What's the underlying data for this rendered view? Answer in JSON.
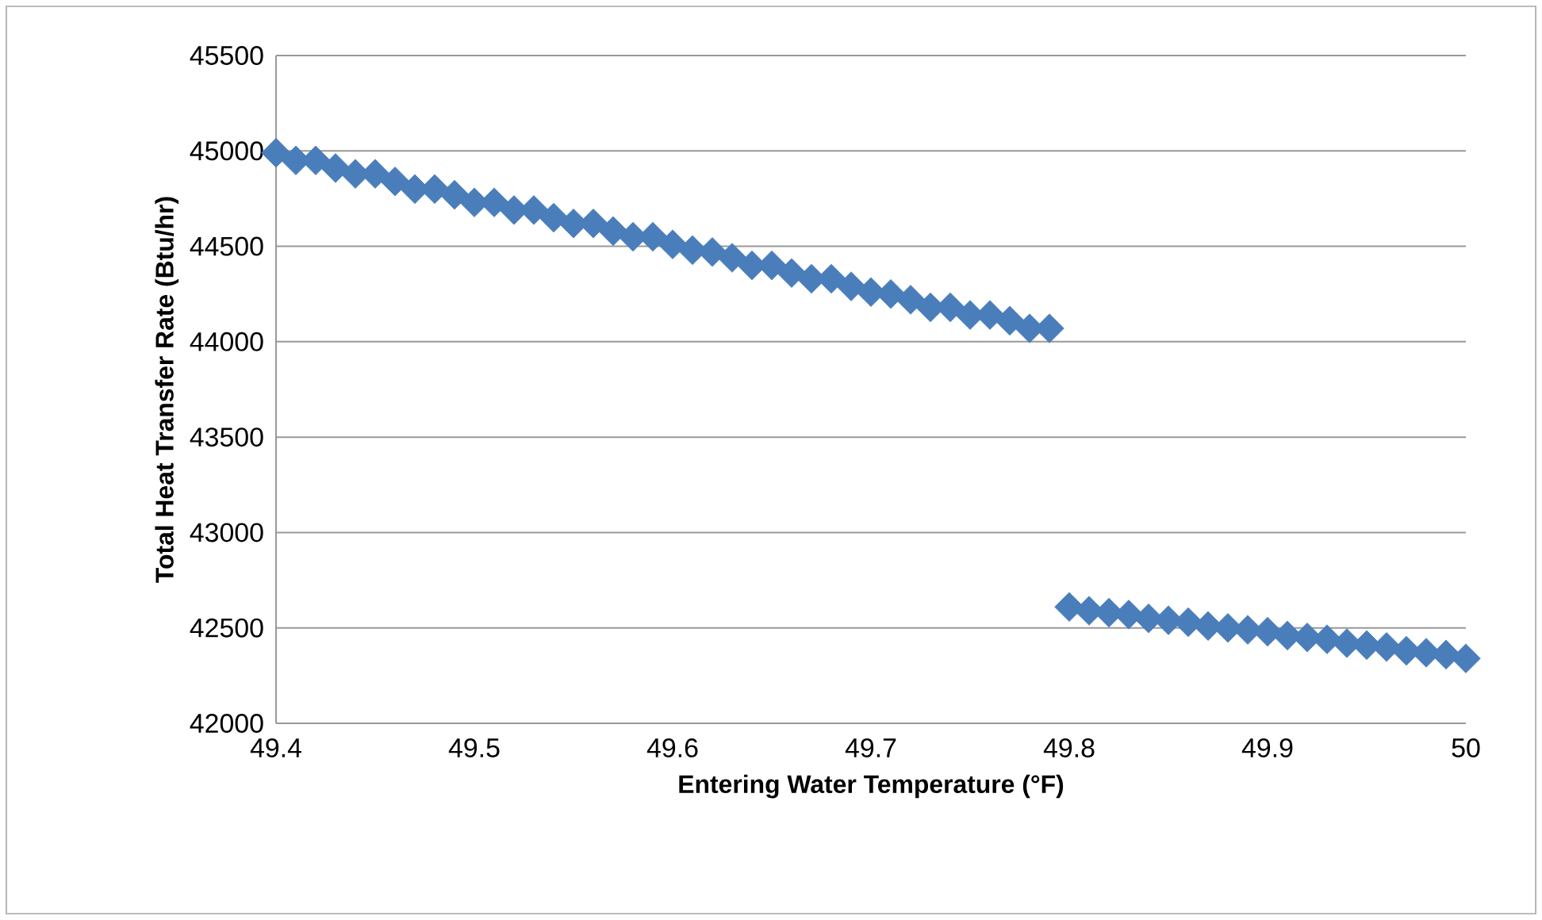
{
  "chart_data": {
    "type": "scatter",
    "xlabel": "Entering Water Temperature (°F)",
    "ylabel": "Total Heat Transfer Rate (Btu/hr)",
    "x": [
      49.4,
      49.41,
      49.42,
      49.43,
      49.44,
      49.45,
      49.46,
      49.47,
      49.48,
      49.49,
      49.5,
      49.51,
      49.52,
      49.53,
      49.54,
      49.55,
      49.56,
      49.57,
      49.58,
      49.59,
      49.6,
      49.61,
      49.62,
      49.63,
      49.64,
      49.65,
      49.66,
      49.67,
      49.68,
      49.69,
      49.7,
      49.71,
      49.72,
      49.73,
      49.74,
      49.75,
      49.76,
      49.77,
      49.78,
      49.79,
      49.8,
      49.81,
      49.82,
      49.83,
      49.84,
      49.85,
      49.86,
      49.87,
      49.88,
      49.89,
      49.9,
      49.91,
      49.92,
      49.93,
      49.94,
      49.95,
      49.96,
      49.97,
      49.98,
      49.99,
      50
    ],
    "series": [
      {
        "color": "#4a7ebb",
        "values": [
          44990,
          44950,
          44950,
          44910,
          44880,
          44880,
          44840,
          44800,
          44800,
          44770,
          44730,
          44730,
          44690,
          44690,
          44650,
          44620,
          44620,
          44580,
          44550,
          44550,
          44510,
          44480,
          44470,
          44440,
          44400,
          44400,
          44360,
          44330,
          44330,
          44290,
          44260,
          44250,
          44220,
          44180,
          44180,
          44140,
          44140,
          44110,
          44070,
          44070,
          42610,
          42590,
          42580,
          42570,
          42550,
          42540,
          42530,
          42510,
          42500,
          42490,
          42480,
          42460,
          42450,
          42440,
          42420,
          42410,
          42400,
          42380,
          42370,
          42360,
          42340
        ]
      }
    ],
    "xlim": [
      49.4,
      50
    ],
    "ylim": [
      42000,
      45500
    ],
    "xticks": [
      {
        "value": 49.4,
        "label": "49.4"
      },
      {
        "value": 49.5,
        "label": "49.5"
      },
      {
        "value": 49.6,
        "label": "49.6"
      },
      {
        "value": 49.7,
        "label": "49.7"
      },
      {
        "value": 49.8,
        "label": "49.8"
      },
      {
        "value": 49.9,
        "label": "49.9"
      },
      50
    ],
    "yticks": [
      42000,
      42500,
      43000,
      43500,
      44000,
      44500,
      45000,
      45500
    ],
    "grid": "y",
    "marker": "diamond"
  }
}
